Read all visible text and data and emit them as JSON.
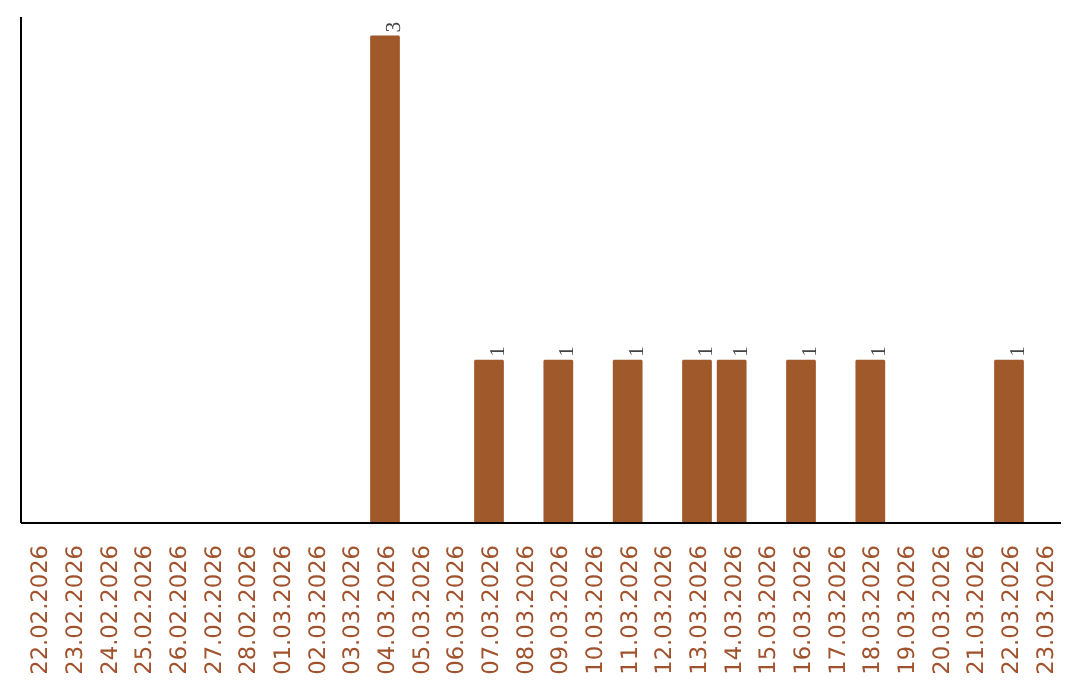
{
  "chart_data": {
    "type": "bar",
    "categories": [
      "22.02.2026",
      "23.02.2026",
      "24.02.2026",
      "25.02.2026",
      "26.02.2026",
      "27.02.2026",
      "28.02.2026",
      "01.03.2026",
      "02.03.2026",
      "03.03.2026",
      "04.03.2026",
      "05.03.2026",
      "06.03.2026",
      "07.03.2026",
      "08.03.2026",
      "09.03.2026",
      "10.03.2026",
      "11.03.2026",
      "12.03.2026",
      "13.03.2026",
      "14.03.2026",
      "15.03.2026",
      "16.03.2026",
      "17.03.2026",
      "18.03.2026",
      "19.03.2026",
      "20.03.2026",
      "21.03.2026",
      "22.03.2026",
      "23.03.2026"
    ],
    "values": [
      0,
      0,
      0,
      0,
      0,
      0,
      0,
      0,
      0,
      0,
      3,
      0,
      0,
      1,
      0,
      1,
      0,
      1,
      0,
      1,
      1,
      0,
      1,
      0,
      1,
      0,
      0,
      0,
      1,
      0
    ],
    "value_labels": [
      null,
      null,
      null,
      null,
      null,
      null,
      null,
      null,
      null,
      null,
      "3",
      null,
      null,
      "1",
      null,
      "1",
      null,
      "1",
      null,
      "1",
      "1",
      null,
      "1",
      null,
      "1",
      null,
      null,
      null,
      "1",
      null
    ],
    "color": "#a0592a",
    "grid": false,
    "tick_labels": "x"
  }
}
